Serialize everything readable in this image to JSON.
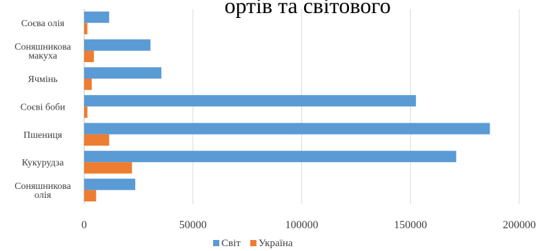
{
  "header": {
    "visible_text": "ортів та світового"
  },
  "chart_data": {
    "type": "bar",
    "orientation": "horizontal",
    "categories": [
      "Соєва олія",
      "Соняшникова макуха",
      "Ячмінь",
      "Соєві боби",
      "Пшениця",
      "Кукурудза",
      "Соняшникова олія"
    ],
    "category_lines": [
      [
        "Соєва олія"
      ],
      [
        "Соняшникова",
        "макуха"
      ],
      [
        "Ячмінь"
      ],
      [
        "Соєві боби"
      ],
      [
        "Пшениця"
      ],
      [
        "Кукурудза"
      ],
      [
        "Соняшникова",
        "олія"
      ]
    ],
    "series": [
      {
        "name": "Світ",
        "color": "#5B9BD5",
        "values": [
          11500,
          30500,
          35500,
          152500,
          186500,
          171000,
          23500
        ]
      },
      {
        "name": "Україна",
        "color": "#ED7D31",
        "values": [
          1500,
          4500,
          3500,
          1500,
          11500,
          22000,
          5500
        ]
      }
    ],
    "xlim": [
      0,
      200000
    ],
    "x_ticks": [
      0,
      50000,
      100000,
      150000,
      200000
    ],
    "x_tick_labels": [
      "0",
      "50000",
      "100000",
      "150000",
      "200000"
    ],
    "grid": true,
    "legend_position": "bottom"
  }
}
